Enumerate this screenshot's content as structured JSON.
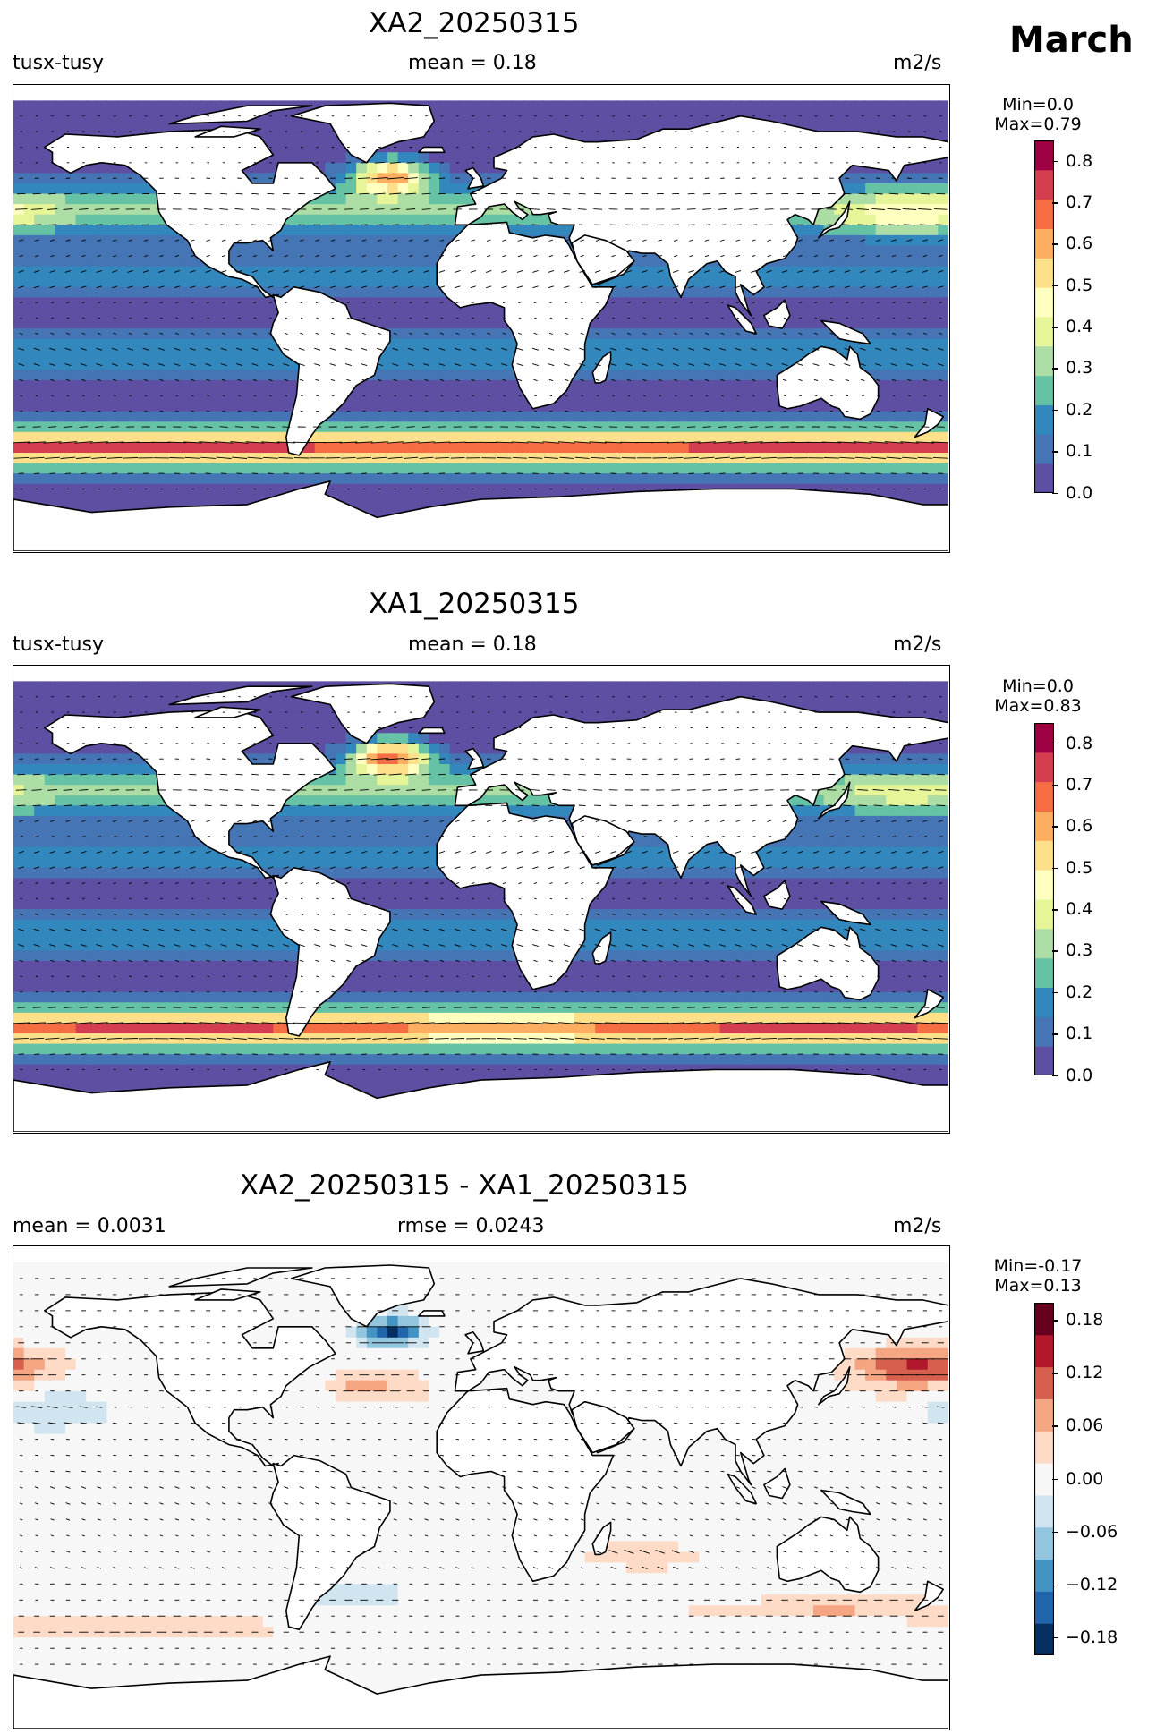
{
  "month": "March",
  "units": "m2/s",
  "panels": [
    {
      "title": "XA2_20250315",
      "left_label": "tusx-tusy",
      "center_label": "mean = 0.18",
      "right_label": "m2/s",
      "cbar_min": "Min=0.0",
      "cbar_max": "Max=0.79",
      "ticks": [
        "0.0",
        "0.1",
        "0.2",
        "0.3",
        "0.4",
        "0.5",
        "0.6",
        "0.7",
        "0.8"
      ]
    },
    {
      "title": "XA1_20250315",
      "left_label": "tusx-tusy",
      "center_label": "mean = 0.18",
      "right_label": "m2/s",
      "cbar_min": "Min=0.0",
      "cbar_max": "Max=0.83",
      "ticks": [
        "0.0",
        "0.1",
        "0.2",
        "0.3",
        "0.4",
        "0.5",
        "0.6",
        "0.7",
        "0.8"
      ]
    },
    {
      "title": "XA2_20250315 - XA1_20250315",
      "left_label": "mean = 0.0031",
      "center_label": "rmse = 0.0243",
      "right_label": "m2/s",
      "cbar_min": "Min=-0.17",
      "cbar_max": "Max=0.13",
      "ticks": [
        "−0.18",
        "−0.12",
        "−0.06",
        "0.00",
        "0.06",
        "0.12",
        "0.18"
      ]
    }
  ],
  "colors": {
    "seq": [
      "#5e4fa2",
      "#4575b4",
      "#3288bd",
      "#66c2a5",
      "#abdda4",
      "#e6f598",
      "#ffffbf",
      "#fee08b",
      "#fdae61",
      "#f46d43",
      "#d53e4f",
      "#9e0142"
    ],
    "div": [
      "#053061",
      "#2166ac",
      "#4393c3",
      "#92c5de",
      "#d1e5f0",
      "#f7f7f7",
      "#fddbc7",
      "#f4a582",
      "#d6604d",
      "#b2182b",
      "#67001f"
    ]
  },
  "chart_data": [
    {
      "type": "heatmap",
      "title": "XA2_20250315",
      "variable": "tusx-tusy",
      "mean": 0.18,
      "units": "m2/s",
      "min": 0.0,
      "max": 0.79,
      "colorbar_range": [
        0.0,
        0.85
      ],
      "colormap": "Spectral_r",
      "overlay": "vector arrows",
      "features": [
        {
          "region": "Southern Ocean ~50S",
          "value": 0.75
        },
        {
          "region": "North Atlantic",
          "value": 0.79
        },
        {
          "region": "North Pacific",
          "value": 0.35
        },
        {
          "region": "Trade wind belts",
          "value": 0.25
        },
        {
          "region": "Equatorial / polar",
          "value": 0.02
        }
      ]
    },
    {
      "type": "heatmap",
      "title": "XA1_20250315",
      "variable": "tusx-tusy",
      "mean": 0.18,
      "units": "m2/s",
      "min": 0.0,
      "max": 0.83,
      "colorbar_range": [
        0.0,
        0.85
      ],
      "colormap": "Spectral_r",
      "overlay": "vector arrows",
      "features": [
        {
          "region": "Southern Ocean ~50S",
          "value": 0.72
        },
        {
          "region": "North Atlantic",
          "value": 0.83
        },
        {
          "region": "North Pacific",
          "value": 0.4
        },
        {
          "region": "Trade wind belts",
          "value": 0.25
        },
        {
          "region": "Equatorial / polar",
          "value": 0.02
        }
      ]
    },
    {
      "type": "heatmap",
      "title": "XA2_20250315 - XA1_20250315",
      "mean": 0.0031,
      "rmse": 0.0243,
      "units": "m2/s",
      "min": -0.17,
      "max": 0.13,
      "colorbar_range": [
        -0.2,
        0.2
      ],
      "colormap": "RdBu_r",
      "overlay": "vector arrows",
      "features": [
        {
          "region": "NW Pacific (Kuroshio)",
          "value": 0.13
        },
        {
          "region": "North Atlantic (Labrador/Irminger)",
          "value": -0.17
        },
        {
          "region": "Southern Ocean bands",
          "value": 0.06
        },
        {
          "region": "Subtropical North Pacific",
          "value": -0.06
        }
      ]
    }
  ]
}
